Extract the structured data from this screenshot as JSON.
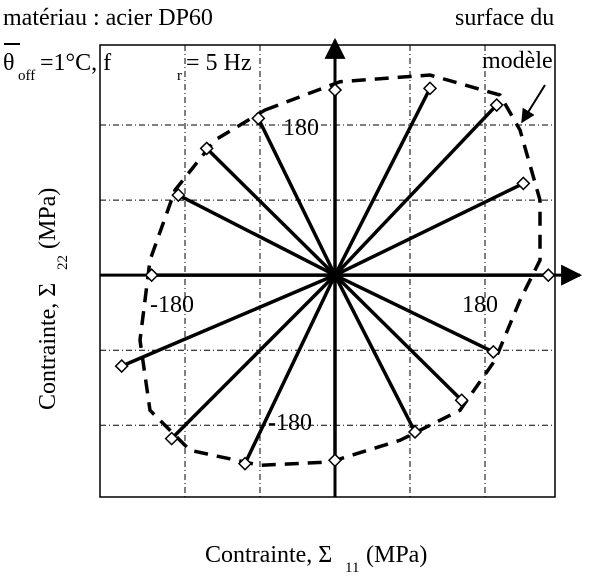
{
  "chart_data": {
    "type": "scatter",
    "title": "matériau : acier DP60",
    "subtitle": {
      "theta": "θ",
      "theta_sub": "off",
      "mid": "=1°C, f",
      "f_sub": "r",
      "end": " = 5 Hz"
    },
    "xlabel": {
      "main": "Contrainte, Σ",
      "sub": "11",
      "unit": "(MPa)"
    },
    "ylabel": {
      "main": "Contrainte, Σ",
      "sub": "22",
      "unit": "(MPa)"
    },
    "xlim": [
      -282,
      264
    ],
    "ylim": [
      -266,
      276
    ],
    "xticks": [
      -180,
      -90,
      0,
      90,
      180
    ],
    "yticks": [
      -180,
      -90,
      0,
      90,
      180
    ],
    "grid": true,
    "annotations": [
      "-180",
      "180",
      "180",
      "-180"
    ],
    "surface_label": [
      "surface du",
      "modèle"
    ],
    "series": [
      {
        "name": "points",
        "color": "#000000",
        "x": [
          114,
          194,
          226,
          256,
          190,
          152,
          96,
          0,
          -108,
          -196,
          -256,
          -220,
          -188,
          -154,
          -92,
          0
        ],
        "y": [
          224,
          204,
          110,
          0,
          -92,
          -150,
          -188,
          -222,
          -226,
          -196,
          -109,
          0,
          96,
          152,
          188,
          222
        ]
      },
      {
        "name": "surface",
        "color": "#000000",
        "x": [
          -84,
          6,
          114,
          198,
          222,
          246,
          246,
          222,
          192,
          150,
          78,
          -6,
          -90,
          -174,
          -222,
          -234,
          -222,
          -192,
          -144
        ],
        "y": [
          198,
          232,
          240,
          216,
          174,
          90,
          18,
          -30,
          -102,
          -162,
          -198,
          -224,
          -228,
          -210,
          -162,
          -78,
          18,
          102,
          162
        ]
      }
    ]
  }
}
